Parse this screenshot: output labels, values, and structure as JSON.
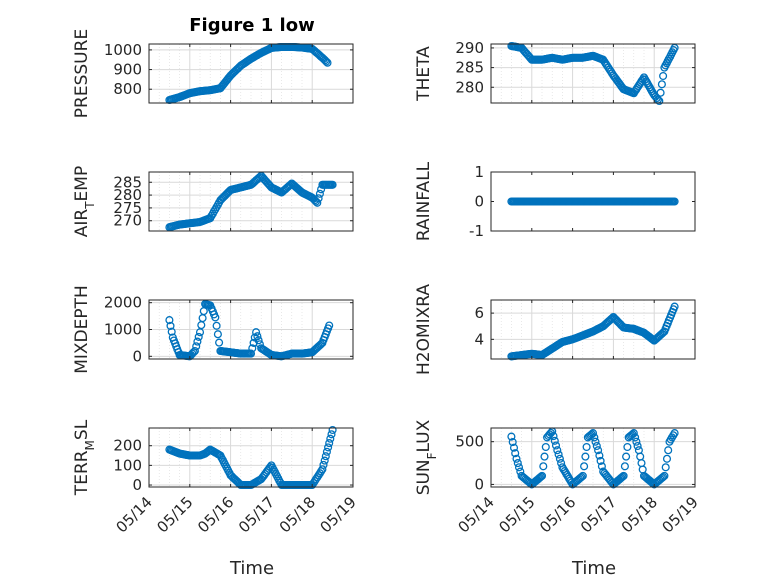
{
  "figure": {
    "title": "Figure 1 low",
    "xlabel": "Time",
    "x_tick_labels": [
      "05/14",
      "05/15",
      "05/16",
      "05/17",
      "05/18",
      "05/19"
    ]
  },
  "style": {
    "marker_color": "#0072BD",
    "axis_color": "#262626",
    "grid_color": "#d9d9d9"
  },
  "chart_data": [
    {
      "type": "scatter",
      "ylabel": "PRESSURE",
      "grid": true,
      "ylim": [
        730,
        1030
      ],
      "yticks": [
        800,
        900,
        1000
      ],
      "x": [
        "05/14 12:00",
        "05/14 18:00",
        "05/15 00:00",
        "05/15 06:00",
        "05/15 12:00",
        "05/15 18:00",
        "05/16 00:00",
        "05/16 06:00",
        "05/16 12:00",
        "05/16 18:00",
        "05/17 00:00",
        "05/17 06:00",
        "05/17 12:00",
        "05/17 18:00",
        "05/18 00:00",
        "05/18 06:00",
        "05/18 09:00"
      ],
      "values": [
        745,
        760,
        780,
        790,
        795,
        805,
        870,
        920,
        955,
        985,
        1010,
        1015,
        1015,
        1012,
        1005,
        960,
        935
      ]
    },
    {
      "type": "scatter",
      "ylabel": "THETA",
      "grid": true,
      "ylim": [
        276,
        291
      ],
      "yticks": [
        280,
        285,
        290
      ],
      "x": [
        "05/14 12:00",
        "05/14 18:00",
        "05/15 00:00",
        "05/15 06:00",
        "05/15 12:00",
        "05/15 18:00",
        "05/16 00:00",
        "05/16 06:00",
        "05/16 12:00",
        "05/16 18:00",
        "05/17 00:00",
        "05/17 06:00",
        "05/17 12:00",
        "05/17 18:00",
        "05/18 00:00",
        "05/18 03:00",
        "05/18 06:00",
        "05/18 12:00"
      ],
      "values": [
        290.5,
        290,
        287,
        287,
        287.5,
        287,
        287.5,
        287.5,
        288,
        287,
        283,
        279.5,
        278.5,
        282.5,
        278,
        276.5,
        285,
        290
      ]
    },
    {
      "type": "scatter",
      "ylabel": "AIR_TEMP",
      "grid": true,
      "ylim": [
        266,
        289
      ],
      "yticks": [
        270,
        275,
        280,
        285
      ],
      "x": [
        "05/14 12:00",
        "05/14 18:00",
        "05/15 00:00",
        "05/15 06:00",
        "05/15 12:00",
        "05/15 18:00",
        "05/16 00:00",
        "05/16 06:00",
        "05/16 12:00",
        "05/16 18:00",
        "05/17 00:00",
        "05/17 06:00",
        "05/17 12:00",
        "05/17 18:00",
        "05/18 00:00",
        "05/18 03:00",
        "05/18 06:00",
        "05/18 12:00"
      ],
      "values": [
        267.5,
        268.5,
        269,
        269.5,
        271,
        278,
        282,
        283,
        284,
        287.5,
        283,
        281,
        284.5,
        281,
        279,
        277,
        284,
        284
      ]
    },
    {
      "type": "scatter",
      "ylabel": "RAINFALL",
      "grid": false,
      "ylim": [
        -1,
        1
      ],
      "yticks": [
        -1,
        0,
        1
      ],
      "x": [
        "05/14 12:00",
        "05/18 12:00"
      ],
      "values": [
        0,
        0
      ]
    },
    {
      "type": "scatter",
      "ylabel": "MIXDEPTH",
      "grid": true,
      "ylim": [
        -100,
        2100
      ],
      "yticks": [
        0,
        1000,
        2000
      ],
      "x": [
        "05/14 12:00",
        "05/14 14:00",
        "05/14 18:00",
        "05/15 00:00",
        "05/15 03:00",
        "05/15 06:00",
        "05/15 09:00",
        "05/15 12:00",
        "05/15 15:00",
        "05/15 18:00",
        "05/16 00:00",
        "05/16 06:00",
        "05/16 12:00",
        "05/16 15:00",
        "05/16 18:00",
        "05/17 00:00",
        "05/17 06:00",
        "05/17 12:00",
        "05/17 18:00",
        "05/18 00:00",
        "05/18 06:00",
        "05/18 10:00"
      ],
      "values": [
        1350,
        700,
        50,
        0,
        200,
        900,
        1950,
        1900,
        1450,
        200,
        150,
        100,
        100,
        900,
        300,
        50,
        0,
        100,
        100,
        150,
        500,
        1150
      ]
    },
    {
      "type": "scatter",
      "ylabel": "H2OMIXRA",
      "grid": true,
      "ylim": [
        2.5,
        7
      ],
      "yticks": [
        4,
        6
      ],
      "x": [
        "05/14 12:00",
        "05/14 18:00",
        "05/15 00:00",
        "05/15 06:00",
        "05/15 12:00",
        "05/15 18:00",
        "05/16 00:00",
        "05/16 06:00",
        "05/16 12:00",
        "05/16 18:00",
        "05/17 00:00",
        "05/17 06:00",
        "05/17 12:00",
        "05/17 18:00",
        "05/18 00:00",
        "05/18 06:00",
        "05/18 12:00"
      ],
      "values": [
        2.7,
        2.8,
        2.9,
        2.8,
        3.3,
        3.8,
        4.0,
        4.3,
        4.6,
        5.0,
        5.7,
        4.9,
        4.8,
        4.5,
        3.9,
        4.6,
        6.5
      ]
    },
    {
      "type": "scatter",
      "ylabel": "TERR_MSL",
      "grid": true,
      "ylim": [
        -10,
        290
      ],
      "yticks": [
        0,
        100,
        200
      ],
      "x": [
        "05/14 12:00",
        "05/14 18:00",
        "05/15 00:00",
        "05/15 06:00",
        "05/15 09:00",
        "05/15 12:00",
        "05/15 18:00",
        "05/16 00:00",
        "05/16 06:00",
        "05/16 12:00",
        "05/16 18:00",
        "05/17 00:00",
        "05/17 06:00",
        "05/17 12:00",
        "05/17 18:00",
        "05/18 00:00",
        "05/18 06:00",
        "05/18 12:00"
      ],
      "values": [
        180,
        160,
        150,
        150,
        160,
        180,
        150,
        50,
        0,
        0,
        30,
        100,
        0,
        0,
        0,
        0,
        80,
        280
      ]
    },
    {
      "type": "scatter",
      "ylabel": "SUN_FLUX",
      "grid": true,
      "ylim": [
        -30,
        660
      ],
      "yticks": [
        0,
        500
      ],
      "x": [
        "05/14 12:00",
        "05/14 15:00",
        "05/14 18:00",
        "05/15 00:00",
        "05/15 06:00",
        "05/15 09:00",
        "05/15 12:00",
        "05/15 15:00",
        "05/15 18:00",
        "05/16 00:00",
        "05/16 06:00",
        "05/16 09:00",
        "05/16 12:00",
        "05/16 15:00",
        "05/16 18:00",
        "05/17 00:00",
        "05/17 06:00",
        "05/17 09:00",
        "05/17 12:00",
        "05/17 15:00",
        "05/17 18:00",
        "05/18 00:00",
        "05/18 06:00",
        "05/18 09:00",
        "05/18 12:00"
      ],
      "values": [
        560,
        300,
        100,
        0,
        100,
        550,
        620,
        400,
        200,
        0,
        100,
        550,
        600,
        400,
        150,
        0,
        100,
        550,
        600,
        400,
        100,
        0,
        100,
        500,
        600
      ]
    }
  ]
}
